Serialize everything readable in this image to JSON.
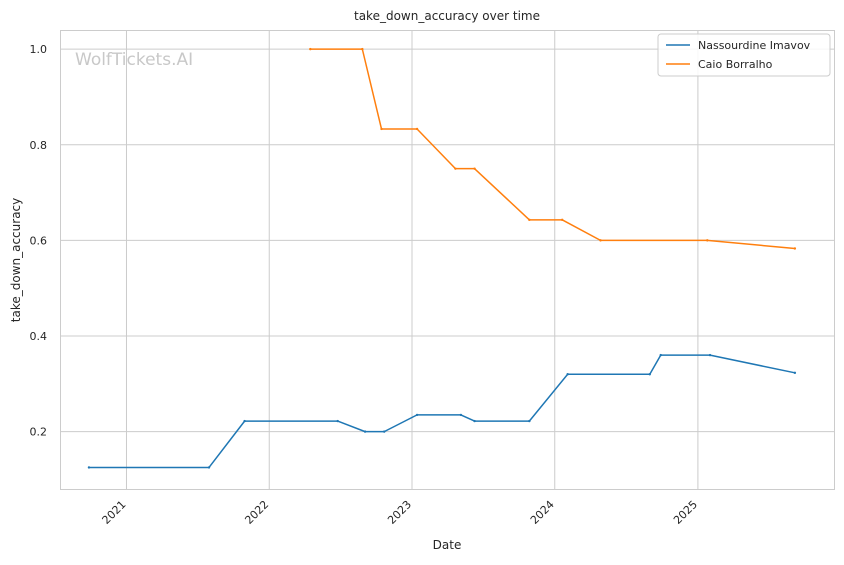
{
  "chart_data": {
    "type": "line",
    "title": "take_down_accuracy over time",
    "xlabel": "Date",
    "ylabel": "take_down_accuracy",
    "watermark": "WolfTickets.AI",
    "grid": true,
    "legend_position": "top-right",
    "x_ticks": [
      "2021",
      "2022",
      "2023",
      "2024",
      "2025"
    ],
    "y_ticks": [
      "0.2",
      "0.4",
      "0.6",
      "0.8",
      "1.0"
    ],
    "xlim": [
      "2020-07-15",
      "2025-12-15"
    ],
    "ylim": [
      0.08,
      1.04
    ],
    "series": [
      {
        "name": "Nassourdine Imavov",
        "color": "#1f77b4",
        "points": [
          {
            "date": "2020-09-27",
            "value": 0.125
          },
          {
            "date": "2021-07-31",
            "value": 0.125
          },
          {
            "date": "2021-10-30",
            "value": 0.222
          },
          {
            "date": "2022-06-25",
            "value": 0.222
          },
          {
            "date": "2022-09-03",
            "value": 0.2
          },
          {
            "date": "2022-10-22",
            "value": 0.2
          },
          {
            "date": "2023-01-14",
            "value": 0.235
          },
          {
            "date": "2023-05-06",
            "value": 0.235
          },
          {
            "date": "2023-06-10",
            "value": 0.222
          },
          {
            "date": "2023-10-28",
            "value": 0.222
          },
          {
            "date": "2024-02-03",
            "value": 0.32
          },
          {
            "date": "2024-08-31",
            "value": 0.32
          },
          {
            "date": "2024-09-28",
            "value": 0.36
          },
          {
            "date": "2025-02-01",
            "value": 0.36
          },
          {
            "date": "2025-09-06",
            "value": 0.323
          }
        ]
      },
      {
        "name": "Caio Borralho",
        "color": "#ff7f0e",
        "points": [
          {
            "date": "2022-04-16",
            "value": 1.0
          },
          {
            "date": "2022-08-27",
            "value": 1.0
          },
          {
            "date": "2022-10-15",
            "value": 0.833
          },
          {
            "date": "2023-01-14",
            "value": 0.833
          },
          {
            "date": "2023-04-22",
            "value": 0.75
          },
          {
            "date": "2023-06-10",
            "value": 0.75
          },
          {
            "date": "2023-10-28",
            "value": 0.643
          },
          {
            "date": "2024-01-20",
            "value": 0.643
          },
          {
            "date": "2024-04-27",
            "value": 0.6
          },
          {
            "date": "2025-01-25",
            "value": 0.6
          },
          {
            "date": "2025-09-06",
            "value": 0.583
          }
        ]
      }
    ]
  }
}
